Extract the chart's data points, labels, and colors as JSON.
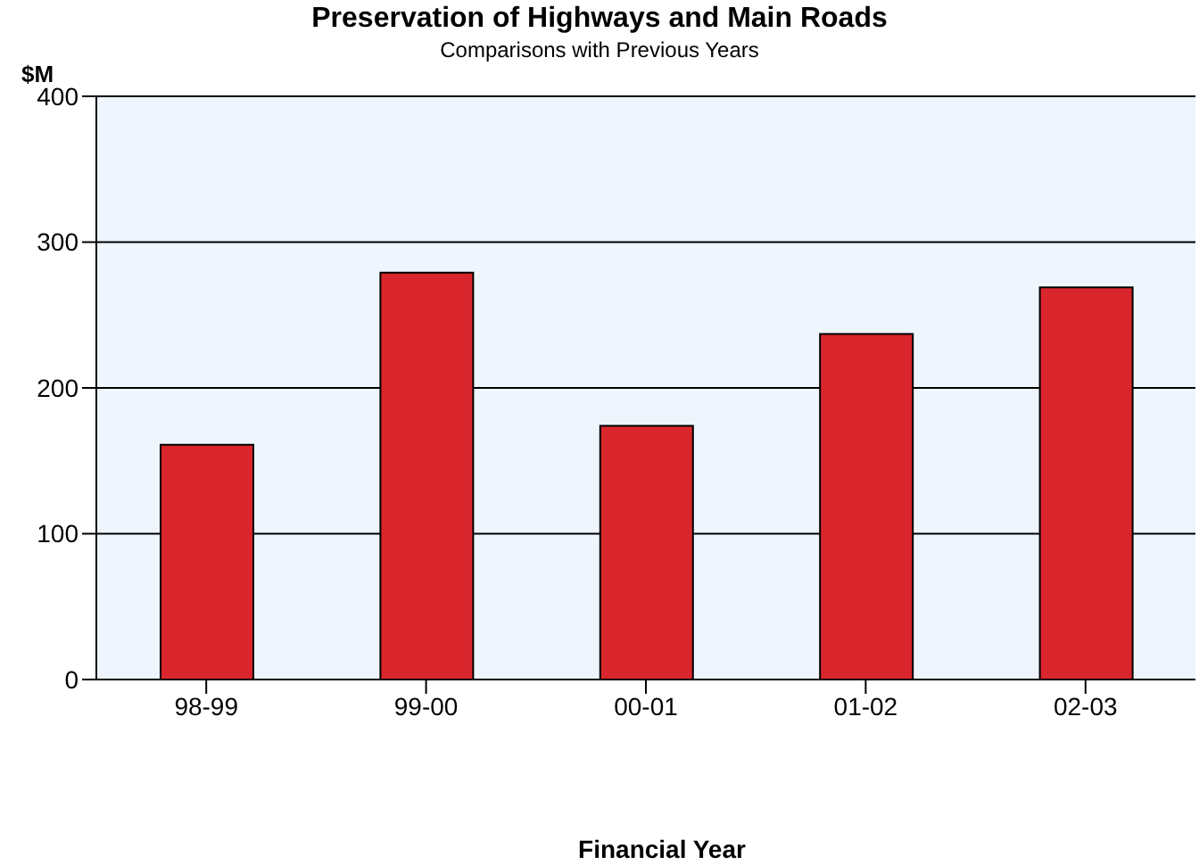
{
  "chart_data": {
    "type": "bar",
    "title": "Preservation of Highways and Main Roads",
    "subtitle": "Comparisons with Previous Years",
    "ylabel": "$M",
    "xlabel": "Financial Year",
    "categories": [
      "98-99",
      "99-00",
      "00-01",
      "01-02",
      "02-03"
    ],
    "values": [
      161,
      279,
      174,
      237,
      269
    ],
    "color": "#d9262c",
    "ylim": [
      0,
      400
    ],
    "yticks": [
      0,
      100,
      200,
      300,
      400
    ],
    "grid": "y"
  }
}
